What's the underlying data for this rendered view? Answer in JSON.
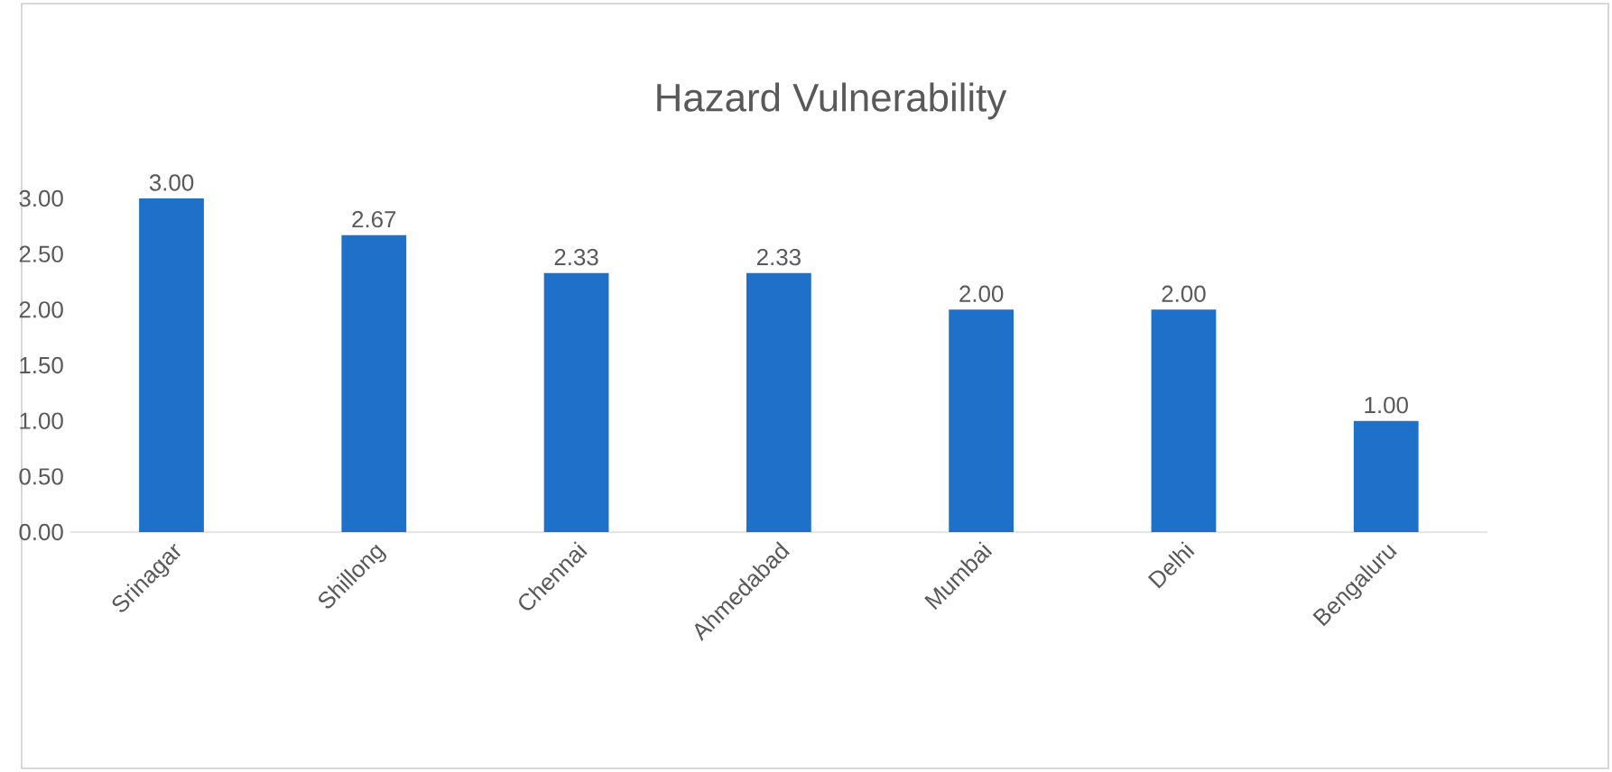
{
  "chart_data": {
    "type": "bar",
    "title": "Hazard Vulnerability",
    "categories": [
      "Srinagar",
      "Shillong",
      "Chennai",
      "Ahmedabad",
      "Mumbai",
      "Delhi",
      "Bengaluru"
    ],
    "values": [
      3.0,
      2.67,
      2.33,
      2.33,
      2.0,
      2.0,
      1.0
    ],
    "value_labels": [
      "3.00",
      "2.67",
      "2.33",
      "2.33",
      "2.00",
      "2.00",
      "1.00"
    ],
    "color": "#1f70c8",
    "ylim": [
      0,
      3
    ],
    "yticks": [
      {
        "value": 0,
        "label": "0.00"
      },
      {
        "value": 0.5,
        "label": "0.50"
      },
      {
        "value": 1,
        "label": "1.00"
      },
      {
        "value": 1.5,
        "label": "1.50"
      },
      {
        "value": 2,
        "label": "2.00"
      },
      {
        "value": 2.5,
        "label": "2.50"
      },
      {
        "value": 3,
        "label": "3.00"
      }
    ],
    "grid": false
  }
}
